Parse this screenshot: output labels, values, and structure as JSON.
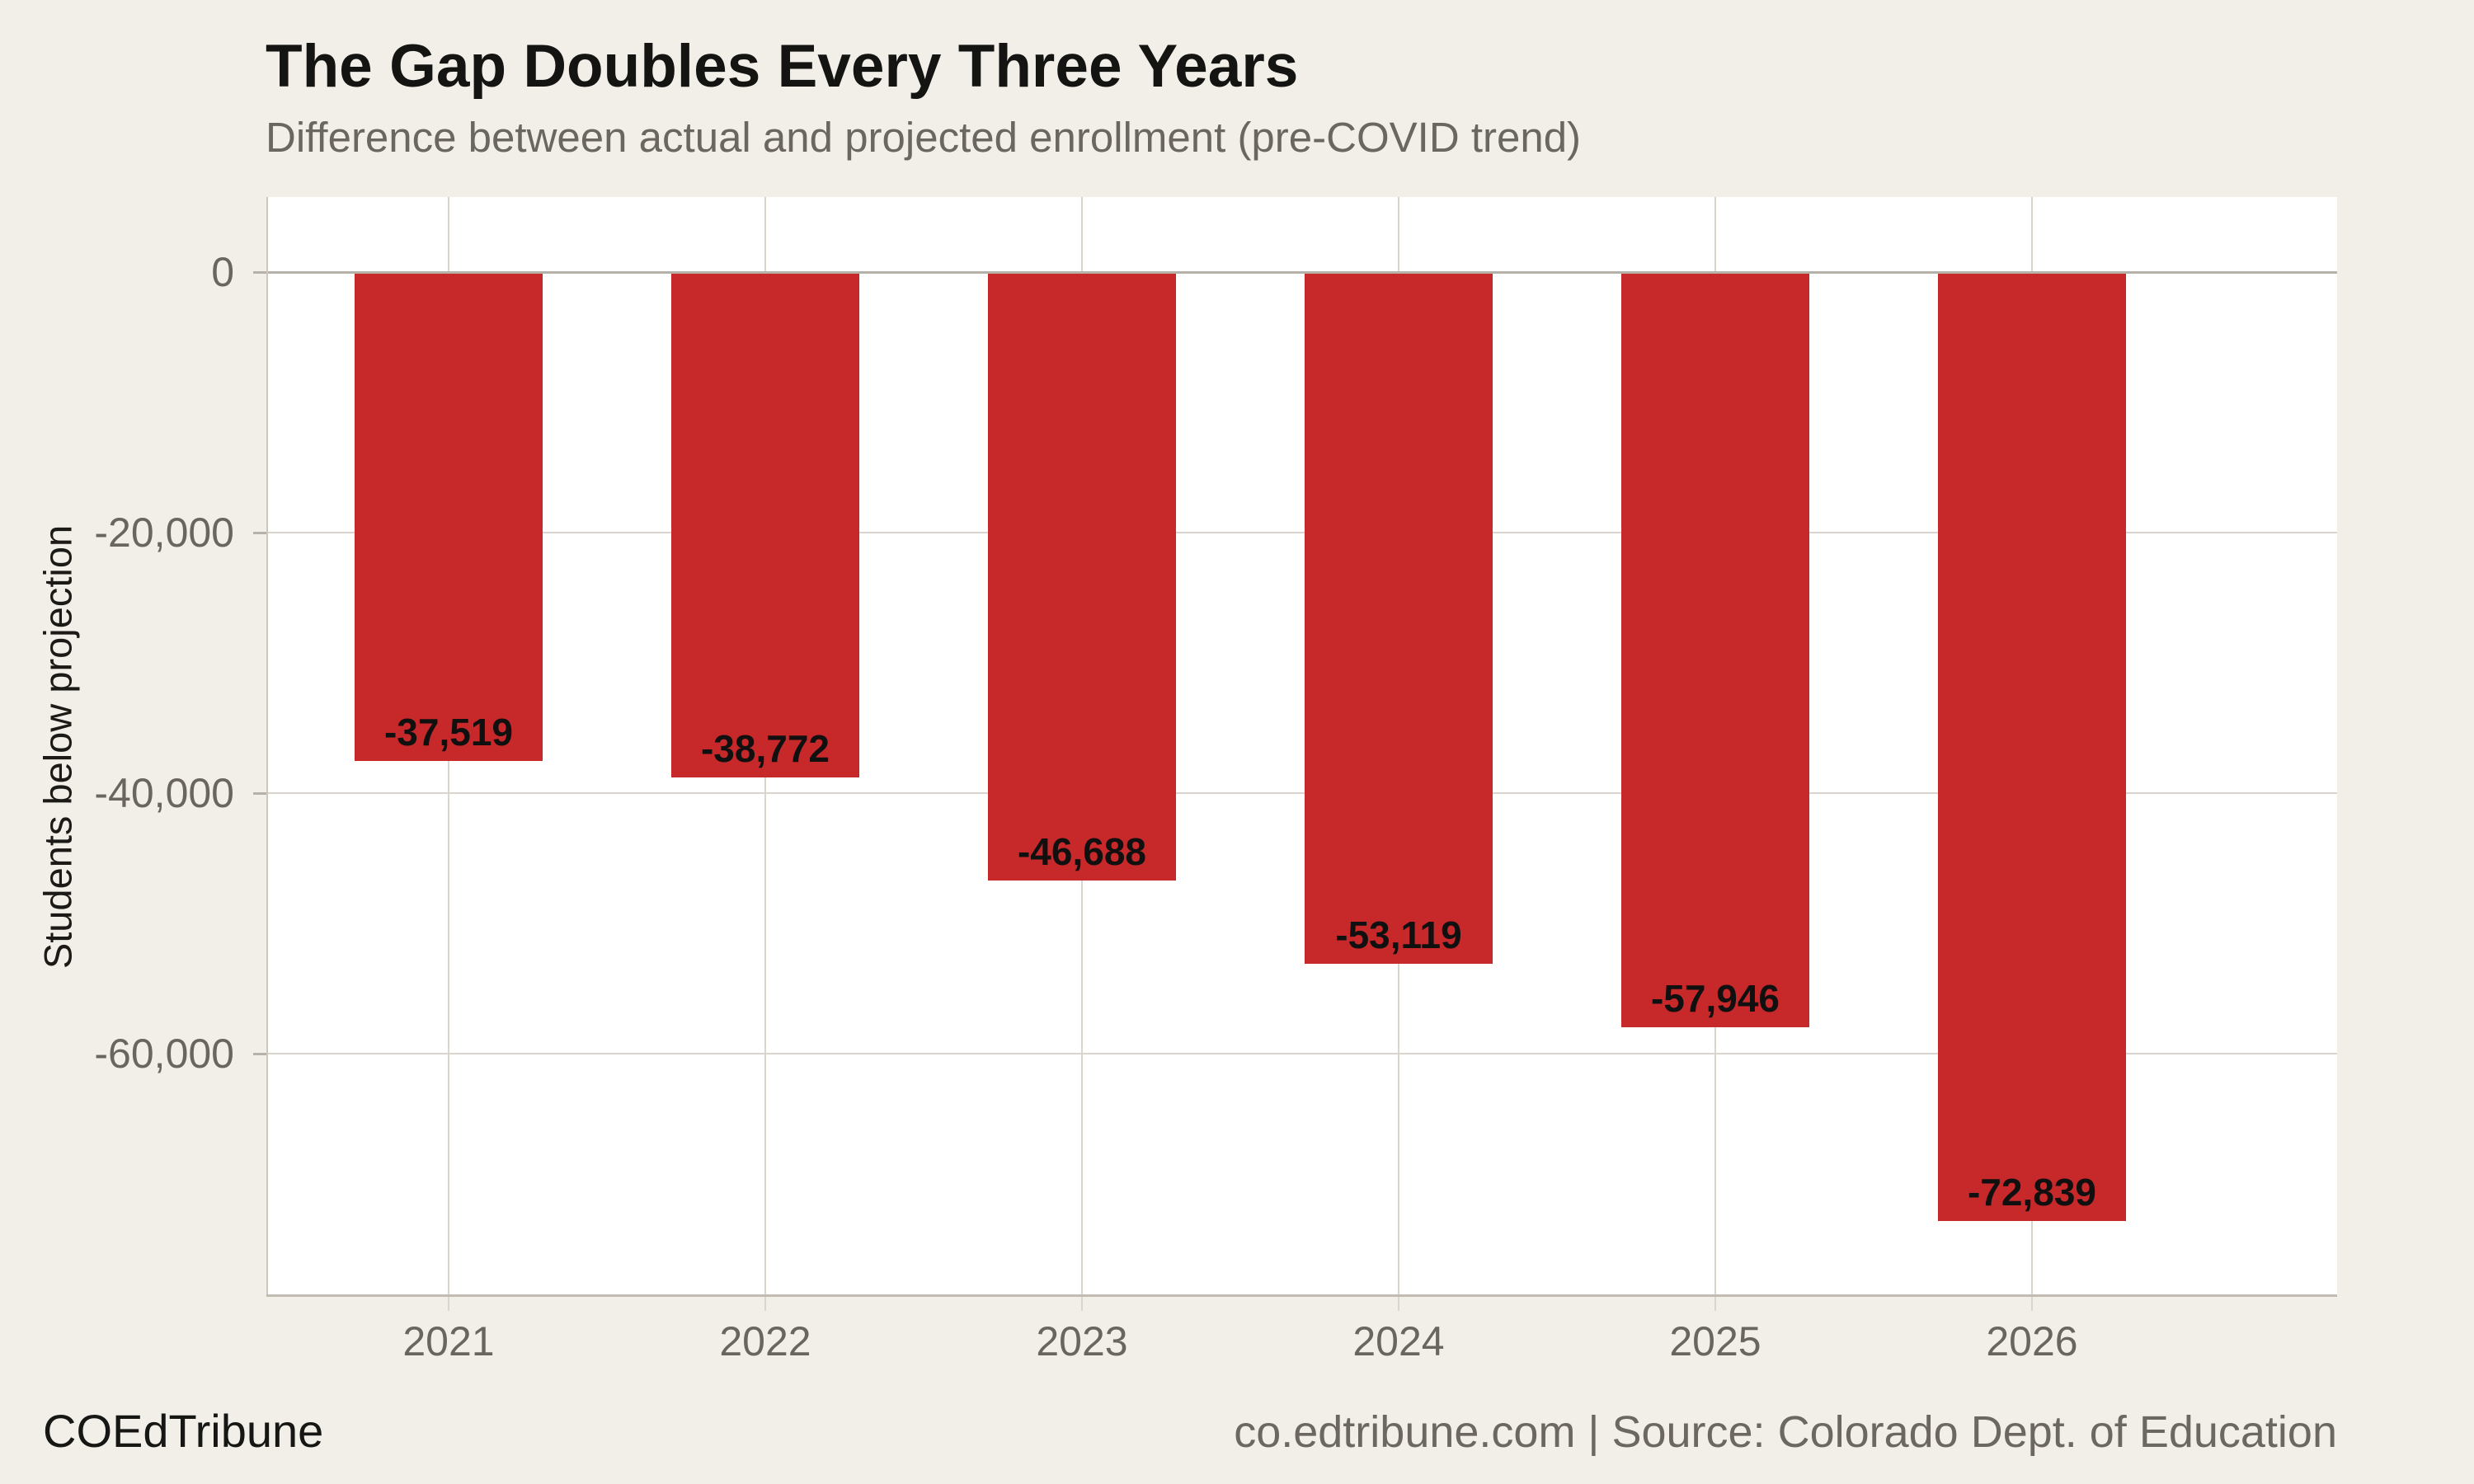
{
  "header": {
    "title": "The Gap Doubles Every Three Years",
    "subtitle": "Difference between actual and projected enrollment (pre-COVID trend)"
  },
  "footer": {
    "brand": "COEdTribune",
    "source": "co.edtribune.com | Source: Colorado Dept. of Education"
  },
  "colors": {
    "background": "#f2efe9",
    "plot_background": "#ffffff",
    "bar": "#c7282a",
    "gridline": "#d9d5cc",
    "zero_line": "#b6b2a9",
    "axis_line": "#c0bcb3",
    "dark_text": "#141413",
    "gray_text": "#6a665f"
  },
  "chart_data": {
    "type": "bar",
    "title": "The Gap Doubles Every Three Years",
    "subtitle": "Difference between actual and projected enrollment (pre-COVID trend)",
    "categories": [
      "2021",
      "2022",
      "2023",
      "2024",
      "2025",
      "2026"
    ],
    "values": [
      -37519,
      -38772,
      -46688,
      -53119,
      -57946,
      -72839
    ],
    "bar_labels": [
      "-37,519",
      "-38,772",
      "-46,688",
      "-53,119",
      "-57,946",
      "-72,839"
    ],
    "series_name": "Students below projection",
    "xlabel": "",
    "ylabel": "Students below projection",
    "y_ticks": [
      {
        "value": 0,
        "label": "0"
      },
      {
        "value": -20000,
        "label": "-20,000"
      },
      {
        "value": -40000,
        "label": "-40,000"
      },
      {
        "value": -60000,
        "label": "-60,000"
      }
    ],
    "ylim": [
      -78400,
      5800
    ],
    "grid": true,
    "legend": false,
    "bar_color": "#c7282a",
    "value_labels_inside_bar": true
  }
}
